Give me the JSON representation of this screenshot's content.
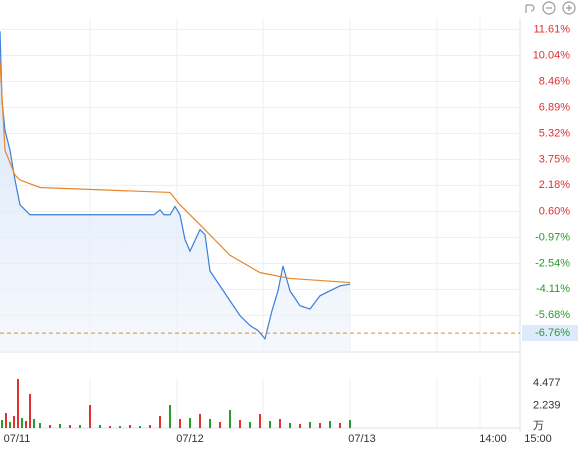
{
  "chart_data": {
    "type": "line",
    "xlim": [
      0,
      260
    ],
    "xticks": [
      {
        "value": 8.5,
        "label": "07/11"
      },
      {
        "value": 95,
        "label": "07/12"
      },
      {
        "value": 181,
        "label": "07/13"
      },
      {
        "value": 246.5,
        "label": "14:00"
      },
      {
        "value": 269,
        "label": "15:00"
      }
    ],
    "xgrid": [
      45,
      88.5,
      131.5,
      175,
      218.5,
      240
    ],
    "ylim": [
      -7.9,
      12.3
    ],
    "yticks": [
      {
        "value": 11.61,
        "label": "11.61%"
      },
      {
        "value": 10.04,
        "label": "10.04%"
      },
      {
        "value": 8.46,
        "label": "8.46%"
      },
      {
        "value": 6.89,
        "label": "6.89%"
      },
      {
        "value": 5.32,
        "label": "5.32%"
      },
      {
        "value": 3.75,
        "label": "3.75%"
      },
      {
        "value": 2.18,
        "label": "2.18%"
      },
      {
        "value": 0.6,
        "label": "0.60%"
      },
      {
        "value": -0.97,
        "label": "-0.97%"
      },
      {
        "value": -2.54,
        "label": "-2.54%"
      },
      {
        "value": -4.11,
        "label": "-4.11%"
      },
      {
        "value": -5.68,
        "label": "-5.68%"
      }
    ],
    "up_color": "#e03030",
    "down_color": "#2a9a2a",
    "current": {
      "value": -6.76,
      "label": "-6.76%"
    },
    "series": [
      {
        "name": "price",
        "color": "#3a7fd8",
        "x": [
          0,
          1,
          2.5,
          5,
          7.5,
          10,
          15,
          77,
          80,
          82,
          85,
          87.5,
          90,
          92.5,
          95,
          100,
          102.5,
          105,
          110,
          115,
          120,
          125,
          129,
          132.5,
          136,
          139,
          141.5,
          145,
          150,
          155,
          160,
          165,
          170,
          175
        ],
        "values": [
          11.5,
          7.3,
          5.5,
          4.3,
          2.5,
          1.0,
          0.4,
          0.4,
          0.7,
          0.4,
          0.4,
          0.9,
          0.4,
          -1.1,
          -1.8,
          -0.5,
          -0.8,
          -3.0,
          -3.9,
          -4.8,
          -5.7,
          -6.3,
          -6.6,
          -7.1,
          -5.4,
          -4.2,
          -2.7,
          -4.2,
          -5.1,
          -5.3,
          -4.5,
          -4.2,
          -3.9,
          -3.8
        ]
      },
      {
        "name": "average",
        "color": "#e8862a",
        "x": [
          0,
          2.5,
          7.5,
          10,
          20,
          85,
          90,
          100,
          115,
          130,
          145,
          175
        ],
        "values": [
          9.7,
          4.3,
          2.8,
          2.5,
          2.05,
          1.75,
          1.0,
          -0.2,
          -2.05,
          -3.1,
          -3.45,
          -3.7
        ]
      }
    ],
    "volume": {
      "ylim": [
        0,
        5.0
      ],
      "yticks": [
        4.477,
        2.239
      ],
      "unit": "万",
      "x": [
        1,
        3,
        5,
        7,
        9,
        11,
        13,
        15,
        17,
        20,
        25,
        30,
        35,
        40,
        45,
        50,
        55,
        60,
        65,
        70,
        75,
        80,
        85,
        90,
        95,
        100,
        105,
        110,
        115,
        120,
        125,
        130,
        135,
        140,
        145,
        150,
        155,
        160,
        165,
        170,
        175
      ],
      "values": [
        0.8,
        1.5,
        0.6,
        1.2,
        4.9,
        1.0,
        0.7,
        3.4,
        0.9,
        0.5,
        0.3,
        0.4,
        0.3,
        0.3,
        2.3,
        0.3,
        0.2,
        0.2,
        0.3,
        0.2,
        0.3,
        1.2,
        2.3,
        0.9,
        1.0,
        1.4,
        0.9,
        0.6,
        1.8,
        0.8,
        0.6,
        1.4,
        0.7,
        0.9,
        0.5,
        0.4,
        0.6,
        0.5,
        0.7,
        0.5,
        0.8
      ],
      "colors": [
        "#2a9a2a",
        "#e03030",
        "#2a9a2a",
        "#e03030",
        "#e03030",
        "#2a9a2a",
        "#e03030",
        "#e03030",
        "#2a9a2a",
        "#2a9a2a",
        "#e03030",
        "#2a9a2a",
        "#e03030",
        "#2a9a2a",
        "#e03030",
        "#2a9a2a",
        "#e03030",
        "#2a9a2a",
        "#e03030",
        "#2a9a2a",
        "#e03030",
        "#e03030",
        "#2a9a2a",
        "#e03030",
        "#2a9a2a",
        "#e03030",
        "#2a9a2a",
        "#e03030",
        "#2a9a2a",
        "#e03030",
        "#2a9a2a",
        "#e03030",
        "#2a9a2a",
        "#e03030",
        "#2a9a2a",
        "#e03030",
        "#2a9a2a",
        "#e03030",
        "#2a9a2a",
        "#e03030",
        "#2a9a2a"
      ]
    }
  }
}
